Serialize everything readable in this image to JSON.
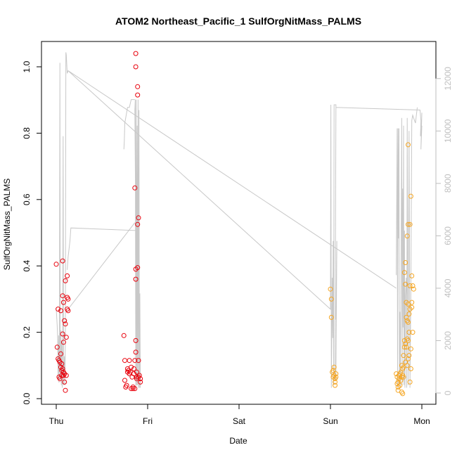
{
  "chart_data": {
    "type": "scatter",
    "title": "ATOM2 Northeast_Pacific_1 SulfOrgNitMass_PALMS",
    "xlabel": "Date",
    "ylabel": "SulfOrgNitMass_PALMS",
    "x_ticks": [
      "Thu",
      "Fri",
      "Sat",
      "Sun",
      "Mon"
    ],
    "y_ticks": [
      "0.0",
      "0.2",
      "0.4",
      "0.6",
      "0.8",
      "1.0"
    ],
    "ylim": [
      0,
      1.05
    ],
    "y2_ticks": [
      "0",
      "2000",
      "4000",
      "6000",
      "8000",
      "10000",
      "12000"
    ],
    "y2lim": [
      -200,
      13000
    ],
    "grid": false,
    "colors": {
      "red": "#e8000b",
      "orange": "#f5a623",
      "line": "#c8c8c8",
      "axis": "#000000",
      "axis2": "#bdbdbd"
    },
    "series": [
      {
        "color": "red",
        "points": [
          [
            0.0,
            0.405
          ],
          [
            0.01,
            0.155
          ],
          [
            0.02,
            0.27
          ],
          [
            0.02,
            0.12
          ],
          [
            0.03,
            0.115
          ],
          [
            0.03,
            0.065
          ],
          [
            0.04,
            0.11
          ],
          [
            0.04,
            0.06
          ],
          [
            0.05,
            0.265
          ],
          [
            0.05,
            0.135
          ],
          [
            0.05,
            0.095
          ],
          [
            0.06,
            0.085
          ],
          [
            0.06,
            0.105
          ],
          [
            0.06,
            0.07
          ],
          [
            0.07,
            0.415
          ],
          [
            0.07,
            0.31
          ],
          [
            0.07,
            0.195
          ],
          [
            0.07,
            0.09
          ],
          [
            0.08,
            0.29
          ],
          [
            0.08,
            0.17
          ],
          [
            0.08,
            0.08
          ],
          [
            0.08,
            0.07
          ],
          [
            0.09,
            0.235
          ],
          [
            0.09,
            0.05
          ],
          [
            0.09,
            0.075
          ],
          [
            0.1,
            0.355
          ],
          [
            0.1,
            0.225
          ],
          [
            0.1,
            0.025
          ],
          [
            0.11,
            0.07
          ],
          [
            0.11,
            0.185
          ],
          [
            0.12,
            0.37
          ],
          [
            0.12,
            0.305
          ],
          [
            0.12,
            0.27
          ],
          [
            0.13,
            0.3
          ],
          [
            0.13,
            0.265
          ],
          [
            0.74,
            0.19
          ],
          [
            0.75,
            0.115
          ],
          [
            0.75,
            0.055
          ],
          [
            0.76,
            0.035
          ],
          [
            0.77,
            0.04
          ],
          [
            0.78,
            0.08
          ],
          [
            0.78,
            0.09
          ],
          [
            0.79,
            0.085
          ],
          [
            0.8,
            0.115
          ],
          [
            0.8,
            0.075
          ],
          [
            0.81,
            0.08
          ],
          [
            0.82,
            0.095
          ],
          [
            0.82,
            0.03
          ],
          [
            0.83,
            0.065
          ],
          [
            0.84,
            0.035
          ],
          [
            0.84,
            0.03
          ],
          [
            0.85,
            0.075
          ],
          [
            0.85,
            0.09
          ],
          [
            0.86,
            0.635
          ],
          [
            0.86,
            0.115
          ],
          [
            0.86,
            0.03
          ],
          [
            0.87,
            1.04
          ],
          [
            0.87,
            1.0
          ],
          [
            0.87,
            0.39
          ],
          [
            0.87,
            0.36
          ],
          [
            0.87,
            0.175
          ],
          [
            0.87,
            0.14
          ],
          [
            0.88,
            0.08
          ],
          [
            0.88,
            0.06
          ],
          [
            0.88,
            0.065
          ],
          [
            0.89,
            0.395
          ],
          [
            0.89,
            0.94
          ],
          [
            0.89,
            0.915
          ],
          [
            0.89,
            0.525
          ],
          [
            0.9,
            0.545
          ],
          [
            0.9,
            0.065
          ],
          [
            0.9,
            0.115
          ],
          [
            0.91,
            0.07
          ],
          [
            0.92,
            0.06
          ],
          [
            0.92,
            0.05
          ]
        ]
      },
      {
        "color": "orange",
        "points": [
          [
            3.0,
            0.33
          ],
          [
            3.01,
            0.3
          ],
          [
            3.01,
            0.245
          ],
          [
            3.02,
            0.08
          ],
          [
            3.03,
            0.065
          ],
          [
            3.03,
            0.085
          ],
          [
            3.04,
            0.07
          ],
          [
            3.04,
            0.095
          ],
          [
            3.05,
            0.05
          ],
          [
            3.05,
            0.06
          ],
          [
            3.05,
            0.04
          ],
          [
            3.06,
            0.075
          ],
          [
            3.06,
            0.065
          ],
          [
            3.72,
            0.075
          ],
          [
            3.73,
            0.065
          ],
          [
            3.73,
            0.045
          ],
          [
            3.74,
            0.05
          ],
          [
            3.74,
            0.035
          ],
          [
            3.74,
            0.025
          ],
          [
            3.75,
            0.07
          ],
          [
            3.75,
            0.06
          ],
          [
            3.76,
            0.075
          ],
          [
            3.76,
            0.04
          ],
          [
            3.77,
            0.08
          ],
          [
            3.77,
            0.055
          ],
          [
            3.78,
            0.1
          ],
          [
            3.78,
            0.065
          ],
          [
            3.78,
            0.02
          ],
          [
            3.79,
            0.09
          ],
          [
            3.79,
            0.07
          ],
          [
            3.79,
            0.015
          ],
          [
            3.8,
            0.13
          ],
          [
            3.8,
            0.095
          ],
          [
            3.8,
            0.065
          ],
          [
            3.81,
            0.38
          ],
          [
            3.81,
            0.175
          ],
          [
            3.81,
            0.155
          ],
          [
            3.82,
            0.41
          ],
          [
            3.82,
            0.345
          ],
          [
            3.82,
            0.165
          ],
          [
            3.82,
            0.11
          ],
          [
            3.83,
            0.29
          ],
          [
            3.83,
            0.245
          ],
          [
            3.83,
            0.155
          ],
          [
            3.84,
            0.49
          ],
          [
            3.84,
            0.235
          ],
          [
            3.84,
            0.18
          ],
          [
            3.84,
            0.1
          ],
          [
            3.85,
            0.525
          ],
          [
            3.85,
            0.765
          ],
          [
            3.85,
            0.285
          ],
          [
            3.85,
            0.23
          ],
          [
            3.85,
            0.12
          ],
          [
            3.85,
            0.175
          ],
          [
            3.86,
            0.255
          ],
          [
            3.86,
            0.2
          ],
          [
            3.86,
            0.13
          ],
          [
            3.87,
            0.525
          ],
          [
            3.87,
            0.34
          ],
          [
            3.87,
            0.27
          ],
          [
            3.87,
            0.05
          ],
          [
            3.88,
            0.61
          ],
          [
            3.88,
            0.15
          ],
          [
            3.88,
            0.09
          ],
          [
            3.89,
            0.37
          ],
          [
            3.89,
            0.29
          ],
          [
            3.89,
            0.275
          ],
          [
            3.9,
            0.34
          ],
          [
            3.9,
            0.2
          ],
          [
            3.91,
            0.33
          ]
        ]
      }
    ],
    "secondary_series": {
      "color": "line",
      "segments": [
        [
          [
            0.0,
            3200
          ],
          [
            0.01,
            2600
          ],
          [
            0.015,
            2100
          ],
          [
            0.02,
            600
          ],
          [
            0.025,
            2200
          ],
          [
            0.03,
            400
          ],
          [
            0.035,
            1800
          ],
          [
            0.04,
            12600
          ],
          [
            0.045,
            500
          ],
          [
            0.05,
            2400
          ],
          [
            0.055,
            300
          ],
          [
            0.06,
            2000
          ],
          [
            0.065,
            200
          ],
          [
            0.07,
            1600
          ],
          [
            0.075,
            9800
          ],
          [
            0.08,
            300
          ],
          [
            0.09,
            1400
          ],
          [
            0.095,
            300
          ],
          [
            0.1,
            2200
          ],
          [
            0.105,
            13000
          ],
          [
            0.11,
            12900
          ],
          [
            0.12,
            12200
          ],
          [
            0.13,
            12300
          ],
          [
            3.0,
            3200
          ],
          [
            3.005,
            11000
          ],
          [
            3.01,
            200
          ],
          [
            3.02,
            4400
          ],
          [
            3.025,
            2100
          ],
          [
            3.03,
            5800
          ],
          [
            3.035,
            300
          ],
          [
            3.04,
            11000
          ],
          [
            3.06,
            11000
          ],
          [
            3.05,
            500
          ],
          [
            3.06,
            10900
          ],
          [
            3.98,
            10800
          ],
          [
            3.99,
            10400
          ],
          [
            3.985,
            9800
          ],
          [
            4.0,
            10200
          ],
          [
            3.99,
            9300
          ],
          [
            4.0,
            10700
          ]
        ],
        [
          [
            0.12,
            4700
          ],
          [
            0.13,
            5200
          ],
          [
            0.15,
            5800
          ],
          [
            0.16,
            6300
          ],
          [
            0.87,
            6200
          ],
          [
            0.86,
            10800
          ],
          [
            0.865,
            11200
          ],
          [
            0.87,
            200
          ],
          [
            0.875,
            11200
          ],
          [
            0.88,
            300
          ],
          [
            0.885,
            10200
          ],
          [
            0.89,
            300
          ],
          [
            0.895,
            11200
          ],
          [
            0.9,
            200
          ],
          [
            0.905,
            10800
          ],
          [
            0.91,
            200
          ],
          [
            0.915,
            3800
          ],
          [
            0.92,
            200
          ]
        ],
        [
          [
            0.74,
            9300
          ],
          [
            0.745,
            9600
          ],
          [
            0.75,
            10300
          ],
          [
            0.76,
            10500
          ],
          [
            0.78,
            10900
          ],
          [
            0.8,
            10900
          ],
          [
            0.82,
            11200
          ],
          [
            0.83,
            11200
          ],
          [
            0.86,
            11200
          ]
        ],
        [
          [
            3.72,
            4500
          ],
          [
            3.73,
            10100
          ],
          [
            3.735,
            200
          ],
          [
            3.74,
            10100
          ],
          [
            3.745,
            5900
          ],
          [
            3.75,
            10100
          ],
          [
            3.755,
            300
          ],
          [
            3.76,
            3100
          ],
          [
            3.765,
            200
          ],
          [
            3.77,
            3300
          ],
          [
            3.78,
            10500
          ],
          [
            3.785,
            300
          ],
          [
            3.79,
            7800
          ],
          [
            3.795,
            2500
          ],
          [
            3.8,
            10200
          ],
          [
            3.805,
            300
          ],
          [
            3.81,
            6200
          ],
          [
            3.815,
            200
          ],
          [
            3.82,
            3700
          ],
          [
            3.83,
            4400
          ],
          [
            3.835,
            200
          ],
          [
            3.84,
            10500
          ],
          [
            3.85,
            300
          ],
          [
            3.86,
            10000
          ],
          [
            3.87,
            200
          ],
          [
            3.88,
            4000
          ],
          [
            3.89,
            10400
          ],
          [
            3.9,
            10600
          ],
          [
            3.93,
            10300
          ],
          [
            3.95,
            10900
          ]
        ],
        [
          [
            0.13,
            3200
          ],
          [
            0.86,
            6500
          ]
        ],
        [
          [
            3.72,
            4000
          ],
          [
            0.13,
            12300
          ]
        ],
        [
          [
            3.06,
            2800
          ],
          [
            3.07,
            5800
          ],
          [
            3.06,
            500
          ]
        ]
      ]
    }
  }
}
